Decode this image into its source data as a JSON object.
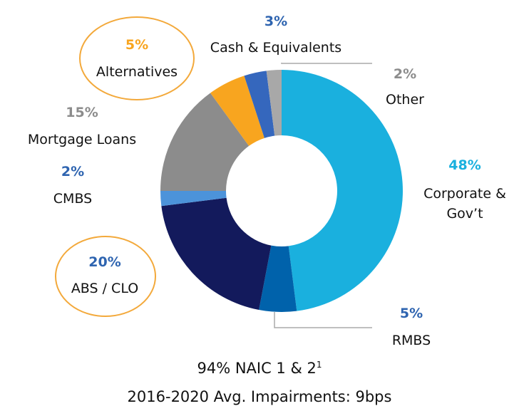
{
  "chart_data": {
    "type": "donut",
    "categories": [
      "Corporate & Gov’t",
      "RMBS",
      "ABS / CLO",
      "CMBS",
      "Mortgage Loans",
      "Alternatives",
      "Cash & Equivalents",
      "Other"
    ],
    "values": [
      48,
      5,
      20,
      2,
      15,
      5,
      3,
      2
    ],
    "value_labels": [
      "48%",
      "5%",
      "20%",
      "2%",
      "15%",
      "5%",
      "3%",
      "2%"
    ],
    "colors": [
      "#1ab0de",
      "#0062ab",
      "#131a5c",
      "#4c93da",
      "#8c8c8c",
      "#f8a51f",
      "#3567bd",
      "#a8a8a8"
    ],
    "label_colors": [
      "#1ab0de",
      "#2e64b0",
      "#2e64b0",
      "#2e64b0",
      "#8c8c8c",
      "#f8a51f",
      "#2e64b0",
      "#8c8c8c"
    ],
    "highlighted": [
      false,
      false,
      true,
      false,
      false,
      true,
      false,
      false
    ],
    "highlight_color": "#f3a93b",
    "notes": [
      "94% NAIC 1 & 2",
      "2016-2020 Avg. Impairments: 9bps"
    ],
    "note_marker": "1"
  }
}
